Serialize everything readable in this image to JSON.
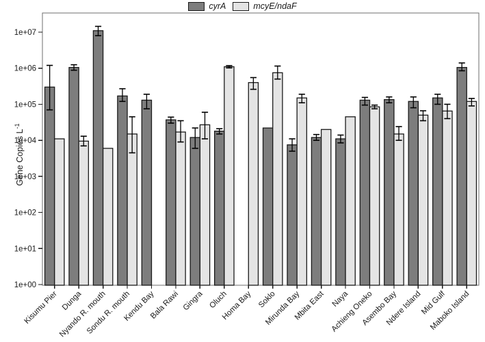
{
  "figure": {
    "legend": [
      {
        "label": "cyrA",
        "color": "#7d7d7d"
      },
      {
        "label": "mcyE/ndaF",
        "color": "#e4e4e4"
      }
    ],
    "ylabel_base": "Gene Copies L",
    "ylabel_sup": "-1"
  },
  "chart_data": {
    "type": "bar",
    "scale": "log",
    "title": "",
    "xlabel": "",
    "ylabel": "Gene Copies L^-1",
    "ylim": [
      1,
      10000000
    ],
    "ytick_labels": [
      "1e+00",
      "1e+01",
      "1e+02",
      "1e+03",
      "1e+04",
      "1e+05",
      "1e+06",
      "1e+07"
    ],
    "legend_position": "top-center",
    "grid": false,
    "frame_color": "#6e6e6e",
    "bar_border_color": "#1a1a1a",
    "errorbar_color": "#000000",
    "categories": [
      "Kisumu Pier",
      "Dunga",
      "Nyando R. mouth",
      "Sondu R. mouth",
      "Kendu Bay",
      "Bala Rawi",
      "Gingra",
      "Oluch",
      "Homa Bay",
      "Soklo",
      "Mirunda Bay",
      "Mbita East",
      "Naya",
      "Achieng Oneko",
      "Asembo Bay",
      "Ndere Island",
      "Mid Gulf",
      "Maboko Island"
    ],
    "series": [
      {
        "name": "cyrA",
        "color": "#7d7d7d",
        "values": [
          300000,
          1050000,
          11000000,
          170000,
          130000,
          37000,
          12000,
          18000,
          null,
          22000,
          7500,
          12000,
          11000,
          130000,
          135000,
          120000,
          150000,
          1050000
        ],
        "err_lo": [
          70000,
          880000,
          8000000,
          120000,
          75000,
          30000,
          6000,
          15000,
          null,
          null,
          5000,
          10000,
          8500,
          95000,
          110000,
          80000,
          100000,
          850000
        ],
        "err_hi": [
          1200000,
          1250000,
          14500000,
          270000,
          190000,
          44000,
          22000,
          21000,
          null,
          null,
          11000,
          14500,
          14000,
          155000,
          160000,
          160000,
          190000,
          1400000
        ]
      },
      {
        "name": "mcyE/ndaF",
        "color": "#e4e4e4",
        "values": [
          11000,
          9500,
          6000,
          15000,
          null,
          17000,
          27000,
          1100000,
          400000,
          750000,
          150000,
          20000,
          45000,
          85000,
          15000,
          50000,
          65000,
          120000
        ],
        "err_lo": [
          null,
          7000,
          null,
          4500,
          null,
          9000,
          11000,
          1020000,
          260000,
          500000,
          110000,
          null,
          null,
          75000,
          10000,
          35000,
          40000,
          90000
        ],
        "err_hi": [
          null,
          13000,
          null,
          45000,
          null,
          35000,
          60000,
          1180000,
          550000,
          1150000,
          190000,
          null,
          null,
          95000,
          24000,
          66000,
          100000,
          145000
        ]
      }
    ]
  }
}
